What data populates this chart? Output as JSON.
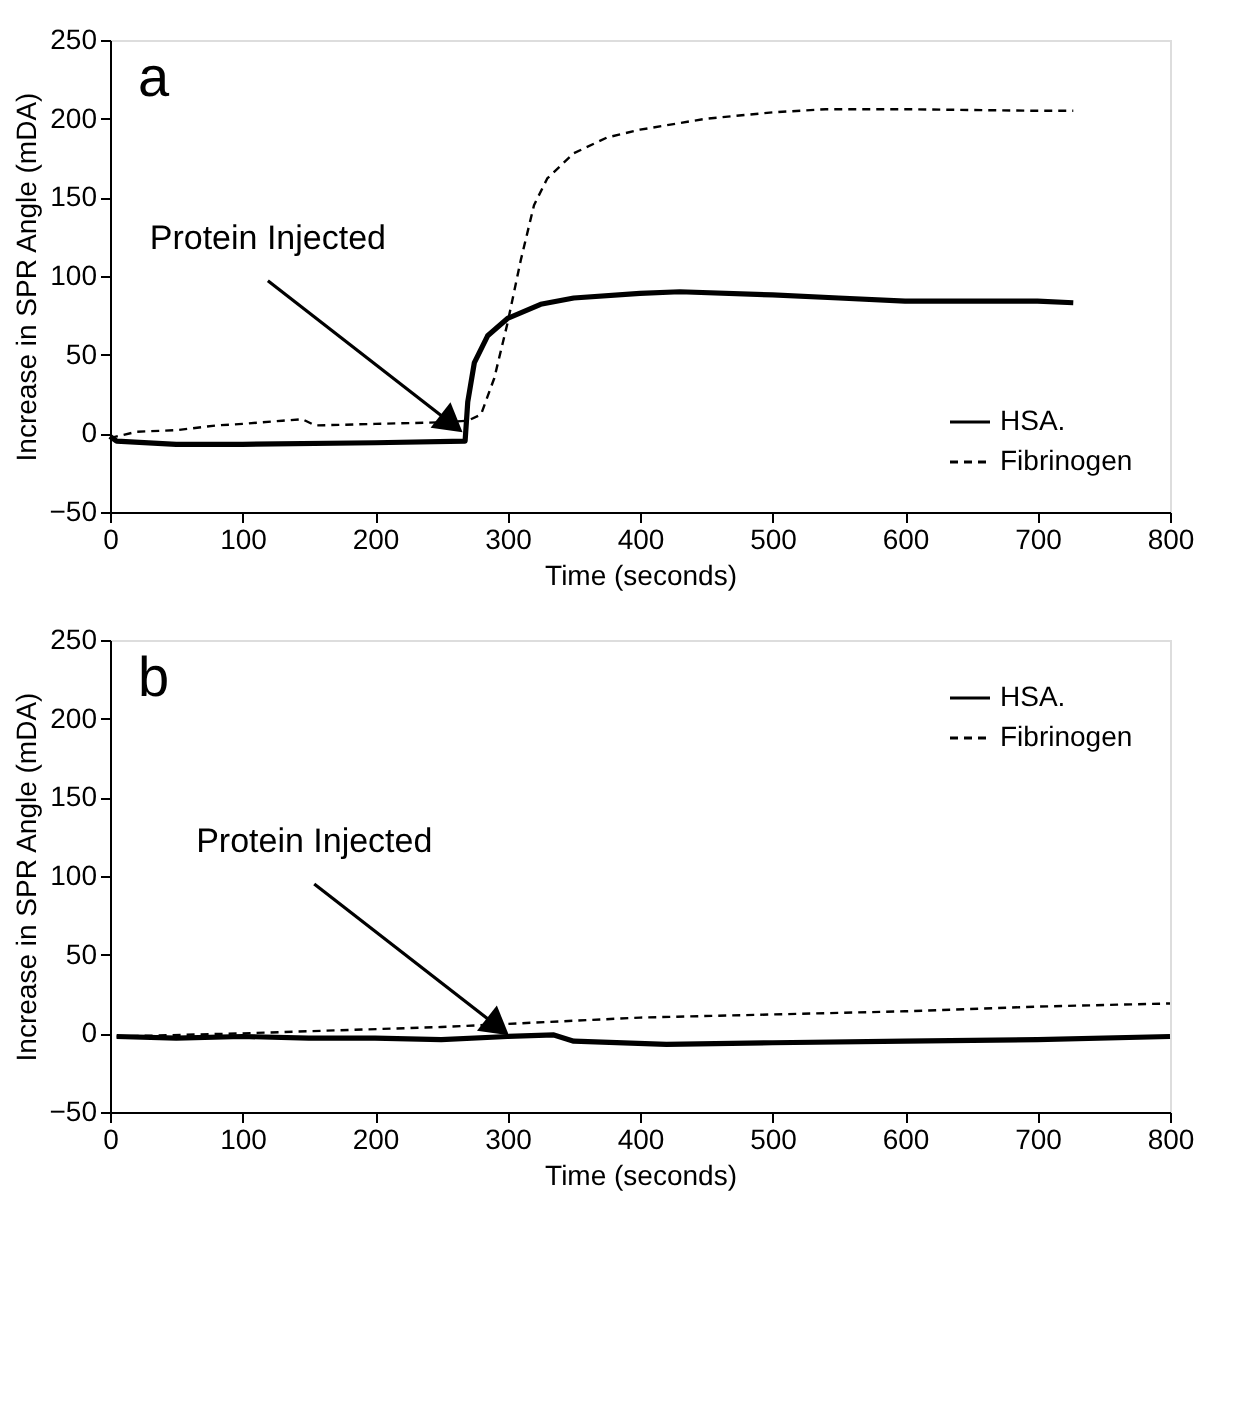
{
  "chart_data": [
    {
      "type": "line",
      "xlabel": "Time (seconds)",
      "ylabel": "Increase in SPR Angle (mDA)",
      "xlim": [
        0,
        800
      ],
      "ylim": [
        -50,
        250
      ],
      "xticks": [
        0,
        100,
        200,
        300,
        400,
        500,
        600,
        700,
        800
      ],
      "yticks": [
        -50,
        0,
        50,
        100,
        150,
        200,
        250
      ],
      "grid": false,
      "legend": "bottom right",
      "marker": "none",
      "annotations": [
        "a",
        {
          "text": "Protein Injected",
          "x": 255,
          "y": 8
        }
      ],
      "series": [
        {
          "name": "HSA.",
          "color": "#000000",
          "line_style": "solid",
          "x": [
            0,
            5,
            50,
            100,
            200,
            268,
            270,
            275,
            285,
            300,
            325,
            350,
            400,
            430,
            500,
            550,
            600,
            650,
            700,
            727
          ],
          "values": [
            -2,
            -5,
            -7,
            -7,
            -6,
            -5,
            20,
            45,
            62,
            73,
            82,
            86,
            89,
            90,
            88,
            86,
            84,
            84,
            84,
            83
          ]
        },
        {
          "name": "Fibrinogen",
          "color": "#000000",
          "line_style": "dashed",
          "x": [
            0,
            20,
            50,
            80,
            100,
            130,
            145,
            155,
            200,
            250,
            270,
            280,
            290,
            300,
            310,
            320,
            330,
            350,
            375,
            400,
            450,
            500,
            540,
            600,
            700,
            727
          ],
          "values": [
            -3,
            1,
            2,
            5,
            6,
            8,
            9,
            5,
            6,
            7,
            8,
            12,
            35,
            70,
            110,
            145,
            162,
            178,
            188,
            193,
            200,
            204,
            206,
            206,
            205,
            205
          ]
        }
      ]
    },
    {
      "type": "line",
      "xlabel": "Time (seconds)",
      "ylabel": "Increase in SPR Angle (mDA)",
      "xlim": [
        0,
        800
      ],
      "ylim": [
        -50,
        250
      ],
      "xticks": [
        0,
        100,
        200,
        300,
        400,
        500,
        600,
        700,
        800
      ],
      "yticks": [
        -50,
        0,
        50,
        100,
        150,
        200,
        250
      ],
      "grid": false,
      "legend": "top right",
      "marker": "none",
      "annotations": [
        "b",
        {
          "text": "Protein Injected",
          "x": 290,
          "y": 6
        }
      ],
      "series": [
        {
          "name": "HSA.",
          "color": "#000000",
          "line_style": "solid",
          "x": [
            5,
            50,
            100,
            150,
            200,
            250,
            300,
            335,
            350,
            420,
            500,
            600,
            700,
            800
          ],
          "values": [
            -2,
            -3,
            -2,
            -3,
            -3,
            -4,
            -2,
            -1,
            -5,
            -7,
            -6,
            -5,
            -4,
            -2
          ]
        },
        {
          "name": "Fibrinogen",
          "color": "#000000",
          "line_style": "dashed",
          "x": [
            5,
            100,
            250,
            400,
            500,
            600,
            700,
            800
          ],
          "values": [
            -2,
            0,
            4,
            10,
            12,
            14,
            17,
            19
          ]
        }
      ]
    }
  ]
}
